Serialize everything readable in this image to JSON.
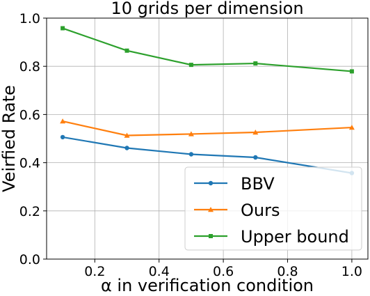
{
  "chart_data": {
    "type": "line",
    "title": "10 grids per dimension",
    "xlabel": "α in verification condition",
    "ylabel": "Veirfied Rate",
    "xlim": [
      0.05,
      1.05
    ],
    "ylim": [
      0.0,
      1.0
    ],
    "xticks": [
      0.2,
      0.4,
      0.6,
      0.8,
      1.0
    ],
    "xtick_labels": [
      "0.2",
      "0.4",
      "0.6",
      "0.8",
      "1.0"
    ],
    "yticks": [
      0.0,
      0.2,
      0.4,
      0.6,
      0.8,
      1.0
    ],
    "ytick_labels": [
      "0.0",
      "0.2",
      "0.4",
      "0.6",
      "0.8",
      "1.0"
    ],
    "grid": true,
    "legend_position": "lower-right",
    "x": [
      0.1,
      0.3,
      0.5,
      0.7,
      1.0
    ],
    "series": [
      {
        "name": "BBV",
        "color": "#1f77b4",
        "marker": "circle",
        "values": [
          0.506,
          0.461,
          0.435,
          0.422,
          0.357
        ]
      },
      {
        "name": "Ours",
        "color": "#ff7f0e",
        "marker": "triangle",
        "values": [
          0.572,
          0.513,
          0.519,
          0.526,
          0.546
        ]
      },
      {
        "name": "Upper bound",
        "color": "#2ca02c",
        "marker": "square",
        "values": [
          0.958,
          0.865,
          0.806,
          0.812,
          0.779
        ]
      }
    ]
  }
}
